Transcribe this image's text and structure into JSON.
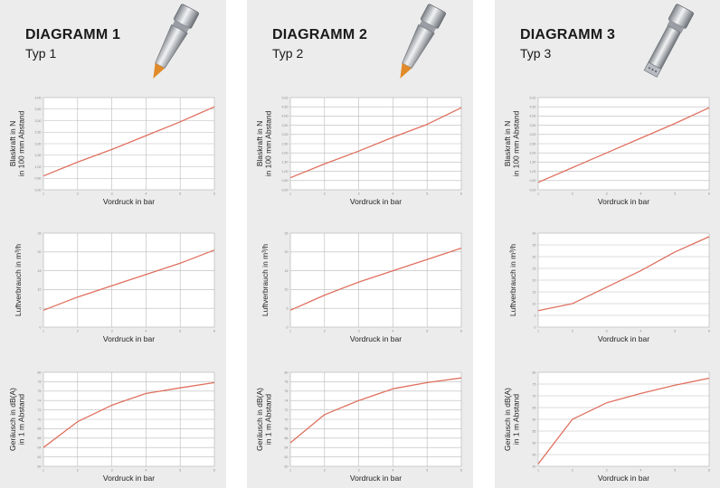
{
  "panels": [
    {
      "title": "DIAGRAMM  1",
      "subtitle": "Typ 1",
      "nozzle_icon": "nozzle-orange-tip-icon",
      "tip_color": "#e08a2a"
    },
    {
      "title": "DIAGRAMM  2",
      "subtitle": "Typ 2",
      "nozzle_icon": "nozzle-orange-tip-icon",
      "tip_color": "#e08a2a"
    },
    {
      "title": "DIAGRAMM  3",
      "subtitle": "Typ 3",
      "nozzle_icon": "nozzle-silver-tip-icon",
      "tip_color": "#b8bcc2"
    }
  ],
  "line_color": "#e0705f",
  "chart_data": [
    {
      "panel": 0,
      "type": "line",
      "xlabel": "Vordruck in bar",
      "ylabel": [
        "Blaskraft in N",
        "in 100 mm Abstand"
      ],
      "xlim": [
        1,
        6
      ],
      "ylim": [
        0,
        4
      ],
      "xticks": [
        1,
        2,
        3,
        4,
        5,
        6
      ],
      "yticks": [
        "0,00",
        "0,50",
        "1,00",
        "1,50",
        "2,00",
        "2,50",
        "3,00",
        "3,50",
        "4,00"
      ],
      "grid": true,
      "x": [
        1,
        2,
        3,
        4,
        5,
        6
      ],
      "y": [
        0.6,
        1.2,
        1.75,
        2.35,
        2.95,
        3.6
      ]
    },
    {
      "panel": 0,
      "type": "line",
      "xlabel": "Vordruck in bar",
      "ylabel": [
        "Luftverbrauch in m³/h"
      ],
      "xlim": [
        1,
        6
      ],
      "ylim": [
        0,
        25
      ],
      "xticks": [
        1,
        2,
        3,
        4,
        5,
        6
      ],
      "yticks": [
        "0",
        "5",
        "10",
        "15",
        "20",
        "25"
      ],
      "grid": true,
      "x": [
        1,
        2,
        3,
        4,
        5,
        6
      ],
      "y": [
        4.5,
        8,
        11,
        14,
        17,
        20.5
      ]
    },
    {
      "panel": 0,
      "type": "line",
      "xlabel": "Vordruck in bar",
      "ylabel": [
        "Geräusch in dB(A)",
        "in 1 m Abstand"
      ],
      "xlim": [
        1,
        6
      ],
      "ylim": [
        60,
        80
      ],
      "xticks": [
        1,
        2,
        3,
        4,
        5,
        6
      ],
      "yticks": [
        "60",
        "62",
        "64",
        "66",
        "68",
        "70",
        "72",
        "74",
        "76",
        "78",
        "80"
      ],
      "grid": true,
      "x": [
        1,
        2,
        3,
        4,
        5,
        6
      ],
      "y": [
        64,
        69.5,
        73,
        75.5,
        76.7,
        77.8
      ]
    },
    {
      "panel": 1,
      "type": "line",
      "xlabel": "Vordruck in bar",
      "ylabel": [
        "Blaskraft in N",
        "in 100 mm Abstand"
      ],
      "xlim": [
        1,
        6
      ],
      "ylim": [
        0,
        5
      ],
      "xticks": [
        1,
        2,
        3,
        4,
        5,
        6
      ],
      "yticks": [
        "0,00",
        "0,50",
        "1,00",
        "1,50",
        "2,00",
        "2,50",
        "3,00",
        "3,50",
        "4,00",
        "4,50",
        "5,00"
      ],
      "grid": true,
      "x": [
        1,
        2,
        3,
        4,
        5,
        6
      ],
      "y": [
        0.65,
        1.4,
        2.1,
        2.85,
        3.55,
        4.45
      ]
    },
    {
      "panel": 1,
      "type": "line",
      "xlabel": "Vordruck in bar",
      "ylabel": [
        "Luftverbrauch in m³/h"
      ],
      "xlim": [
        1,
        6
      ],
      "ylim": [
        0,
        25
      ],
      "xticks": [
        1,
        2,
        3,
        4,
        5,
        6
      ],
      "yticks": [
        "0",
        "5",
        "10",
        "15",
        "20",
        "25"
      ],
      "grid": true,
      "x": [
        1,
        2,
        3,
        4,
        5,
        6
      ],
      "y": [
        4.5,
        8.5,
        12,
        15,
        18,
        21
      ]
    },
    {
      "panel": 1,
      "type": "line",
      "xlabel": "Vordruck in bar",
      "ylabel": [
        "Geräusch in dB(A)",
        "in 1 m Abstand"
      ],
      "xlim": [
        1,
        6
      ],
      "ylim": [
        60,
        80
      ],
      "xticks": [
        1,
        2,
        3,
        4,
        5,
        6
      ],
      "yticks": [
        "60",
        "62",
        "64",
        "66",
        "68",
        "70",
        "72",
        "74",
        "76",
        "78",
        "80"
      ],
      "grid": true,
      "x": [
        1,
        2,
        3,
        4,
        5,
        6
      ],
      "y": [
        65,
        71,
        74,
        76.5,
        77.8,
        78.8
      ]
    },
    {
      "panel": 2,
      "type": "line",
      "xlabel": "Vordruck in bar",
      "ylabel": [
        "Blaskraft in N",
        "in 100 mm Abstand"
      ],
      "xlim": [
        1,
        6
      ],
      "ylim": [
        0,
        5
      ],
      "xticks": [
        1,
        2,
        3,
        4,
        5,
        6
      ],
      "yticks": [
        "0,00",
        "0,50",
        "1,00",
        "1,50",
        "2,00",
        "2,50",
        "3,00",
        "3,50",
        "4,00",
        "4,50",
        "5,00"
      ],
      "grid": false,
      "x": [
        1,
        2,
        3,
        4,
        5,
        6
      ],
      "y": [
        0.4,
        1.2,
        2.0,
        2.8,
        3.6,
        4.45
      ]
    },
    {
      "panel": 2,
      "type": "line",
      "xlabel": "Vordruck in bar",
      "ylabel": [
        "Luftverbrauch in m³/h"
      ],
      "xlim": [
        1,
        6
      ],
      "ylim": [
        0,
        40
      ],
      "xticks": [
        1,
        2,
        3,
        4,
        5,
        6
      ],
      "yticks": [
        "0",
        "5",
        "10",
        "15",
        "20",
        "25",
        "30",
        "35",
        "40"
      ],
      "grid": false,
      "x": [
        1,
        2,
        3,
        4,
        5,
        6
      ],
      "y": [
        7,
        10,
        17,
        24,
        32,
        38.5
      ]
    },
    {
      "panel": 2,
      "type": "line",
      "xlabel": "Vordruck in bar",
      "ylabel": [
        "Geräusch in dB(A)",
        "in 1 m Abstand"
      ],
      "xlim": [
        1,
        6
      ],
      "ylim": [
        40,
        80
      ],
      "xticks": [
        1,
        2,
        3,
        4,
        5,
        6
      ],
      "yticks": [
        "40",
        "45",
        "50",
        "55",
        "60",
        "65",
        "70",
        "75",
        "80"
      ],
      "grid": false,
      "x": [
        1,
        2,
        3,
        4,
        5,
        6
      ],
      "y": [
        41,
        60,
        67,
        71,
        74.5,
        77.5
      ]
    }
  ]
}
